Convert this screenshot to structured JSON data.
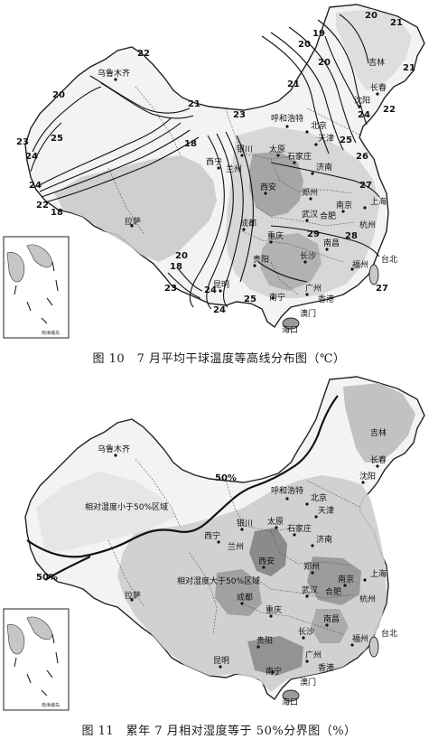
{
  "figure10": {
    "caption": "图 10　7 月平均干球温度等高线分布图（℃）",
    "isotherm_labels": [
      "20",
      "21",
      "22",
      "23",
      "24",
      "25",
      "26",
      "27",
      "28",
      "29",
      "18",
      "19"
    ],
    "cities": {
      "urumqi": "乌鲁木齐",
      "hohhot": "呼和浩特",
      "beijing": "北京",
      "tianjin": "天津",
      "shijiazhuang": "石家庄",
      "taiyuan": "太原",
      "jinan": "济南",
      "shenyang": "沈阳",
      "changchun": "长春",
      "jilin": "吉林",
      "xining": "西宁",
      "yinchuan": "银川",
      "lanzhou": "兰州",
      "xian": "西安",
      "zhengzhou": "郑州",
      "nanjing": "南京",
      "shanghai": "上海",
      "hangzhou": "杭州",
      "wuhan": "武汉",
      "hefei": "合肥",
      "nanchang": "南昌",
      "changsha": "长沙",
      "chengdu": "成都",
      "chongqing": "重庆",
      "guiyang": "贵阳",
      "kunming": "昆明",
      "lhasa": "拉萨",
      "fuzhou": "福州",
      "taibei": "台北",
      "guangzhou": "广州",
      "nanning": "南宁",
      "hongkong": "香港",
      "macau": "澳门",
      "haikou": "海口"
    },
    "inset_caption": "南海诸岛"
  },
  "figure11": {
    "caption": "图 11　累年 7 月相对湿度等于 50%分界图（%）",
    "region_low": "相对湿度小于50%区域",
    "region_high": "相对湿度大于50%区域",
    "boundary_label_1": "50%",
    "boundary_label_2": "50%",
    "cities": {
      "urumqi": "乌鲁木齐",
      "hohhot": "呼和浩特",
      "beijing": "北京",
      "tianjin": "天津",
      "shijiazhuang": "石家庄",
      "taiyuan": "太原",
      "jinan": "济南",
      "shenyang": "沈阳",
      "changchun": "长春",
      "jilin": "吉林",
      "xining": "西宁",
      "yinchuan": "银川",
      "lanzhou": "兰州",
      "xian": "西安",
      "zhengzhou": "郑州",
      "nanjing": "南京",
      "shanghai": "上海",
      "hangzhou": "杭州",
      "wuhan": "武汉",
      "hefei": "合肥",
      "nanchang": "南昌",
      "changsha": "长沙",
      "chengdu": "成都",
      "chongqing": "重庆",
      "guiyang": "贵阳",
      "kunming": "昆明",
      "lhasa": "拉萨",
      "fuzhou": "福州",
      "taibei": "台北",
      "guangzhou": "广州",
      "nanning": "南宁",
      "hongkong": "香港",
      "macau": "澳门",
      "haikou": "海口"
    },
    "inset_caption": "南海诸岛"
  },
  "colors": {
    "land": "#f4f4f4",
    "shade_light": "#d2d2d2",
    "shade_mid": "#b4b4b4",
    "shade_dark": "#8a8a8a",
    "border": "#222222"
  }
}
